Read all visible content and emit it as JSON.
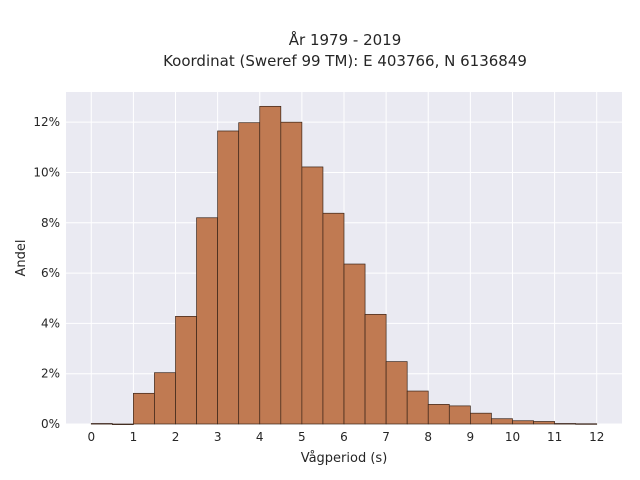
{
  "chart_data": {
    "type": "bar",
    "title": "År 1979 - 2019",
    "subtitle": "Koordinat (Sweref 99 TM): E 403766, N 6136849",
    "xlabel": "Vågperiod (s)",
    "ylabel": "Andel",
    "bin_width": 0.5,
    "bin_starts": [
      0,
      0.5,
      1.0,
      1.5,
      2.0,
      2.5,
      3.0,
      3.5,
      4.0,
      4.5,
      5.0,
      5.5,
      6.0,
      6.5,
      7.0,
      7.5,
      8.0,
      8.5,
      9.0,
      9.5,
      10.0,
      10.5,
      11.0,
      11.5
    ],
    "values": [
      0.02,
      0.0,
      1.22,
      2.04,
      4.28,
      8.2,
      11.65,
      11.98,
      12.63,
      12.0,
      10.22,
      8.38,
      6.36,
      4.36,
      2.48,
      1.31,
      0.78,
      0.72,
      0.43,
      0.21,
      0.13,
      0.1,
      0.02,
      0.01
    ],
    "xlim": [
      -0.6,
      12.6
    ],
    "ylim": [
      0,
      13.2
    ],
    "xticks": [
      "0",
      "1",
      "2",
      "3",
      "4",
      "5",
      "6",
      "7",
      "8",
      "9",
      "10",
      "11",
      "12"
    ],
    "yticks": [
      "0%",
      "2%",
      "4%",
      "6%",
      "8%",
      "10%",
      "12%"
    ],
    "grid": true,
    "colors": {
      "bar": "#c07a52",
      "edge": "#3a2418",
      "plot_bg": "#eaeaf2",
      "grid": "#ffffff"
    }
  }
}
